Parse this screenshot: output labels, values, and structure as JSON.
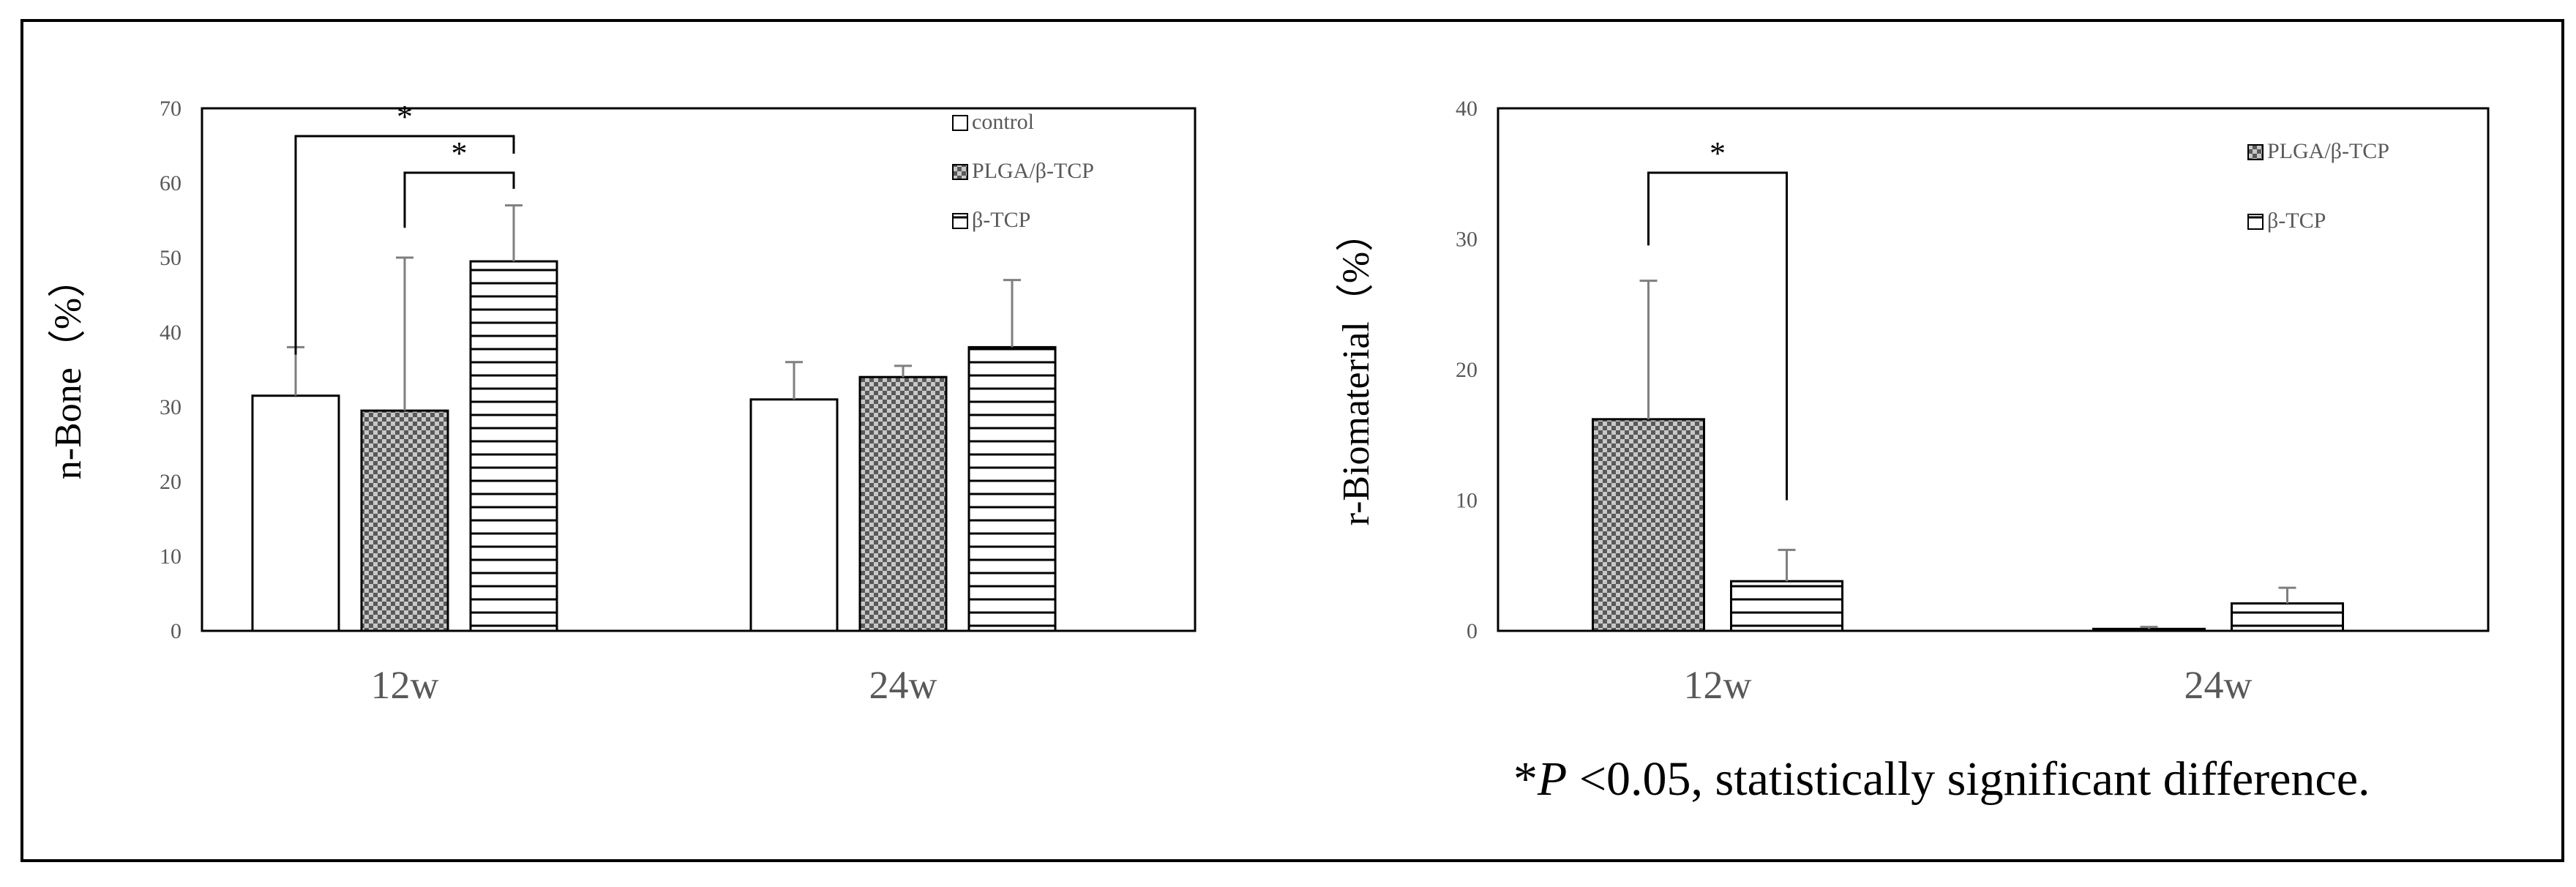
{
  "footnote": {
    "prefix": "*",
    "p_symbol": "P",
    "text": " <0.05, statistically significant difference."
  },
  "chart_data": [
    {
      "type": "bar",
      "ylabel": "n-Bone（%）",
      "ylim": [
        0,
        70
      ],
      "yticks": [
        0,
        10,
        20,
        30,
        40,
        50,
        60,
        70
      ],
      "categories": [
        "12w",
        "24w"
      ],
      "legend_position": "top-right",
      "series": [
        {
          "name": "control",
          "pattern": "none",
          "values": [
            31.5,
            31
          ],
          "errors": [
            6.5,
            5
          ]
        },
        {
          "name": "PLGA/β-TCP",
          "pattern": "checker",
          "values": [
            29.5,
            34
          ],
          "errors": [
            20.5,
            1.5
          ]
        },
        {
          "name": "β-TCP",
          "pattern": "hlines",
          "values": [
            49.5,
            38
          ],
          "errors": [
            7.5,
            9
          ]
        }
      ],
      "significance": [
        {
          "label": "*",
          "from_series": 0,
          "to_series": 2,
          "category": 0
        },
        {
          "label": "*",
          "from_series": 1,
          "to_series": 2,
          "category": 0
        }
      ]
    },
    {
      "type": "bar",
      "ylabel": "r-Biomaterial（%）",
      "ylim": [
        0,
        40
      ],
      "yticks": [
        0,
        10,
        20,
        30,
        40
      ],
      "categories": [
        "12w",
        "24w"
      ],
      "legend_position": "top-right",
      "series": [
        {
          "name": "PLGA/β-TCP",
          "pattern": "checker",
          "values": [
            16.2,
            0.15
          ],
          "errors": [
            10.6,
            0.15
          ]
        },
        {
          "name": "β-TCP",
          "pattern": "hlines",
          "values": [
            3.8,
            2.1
          ],
          "errors": [
            2.4,
            1.2
          ]
        }
      ],
      "significance": [
        {
          "label": "*",
          "from_series": 0,
          "to_series": 1,
          "category": 0
        }
      ]
    }
  ],
  "colors": {
    "axis": "#000000",
    "tick_text": "#595959",
    "error_bar": "#7f7f7f",
    "checker_dark": "#595959",
    "checker_light": "#c8c8c8"
  }
}
